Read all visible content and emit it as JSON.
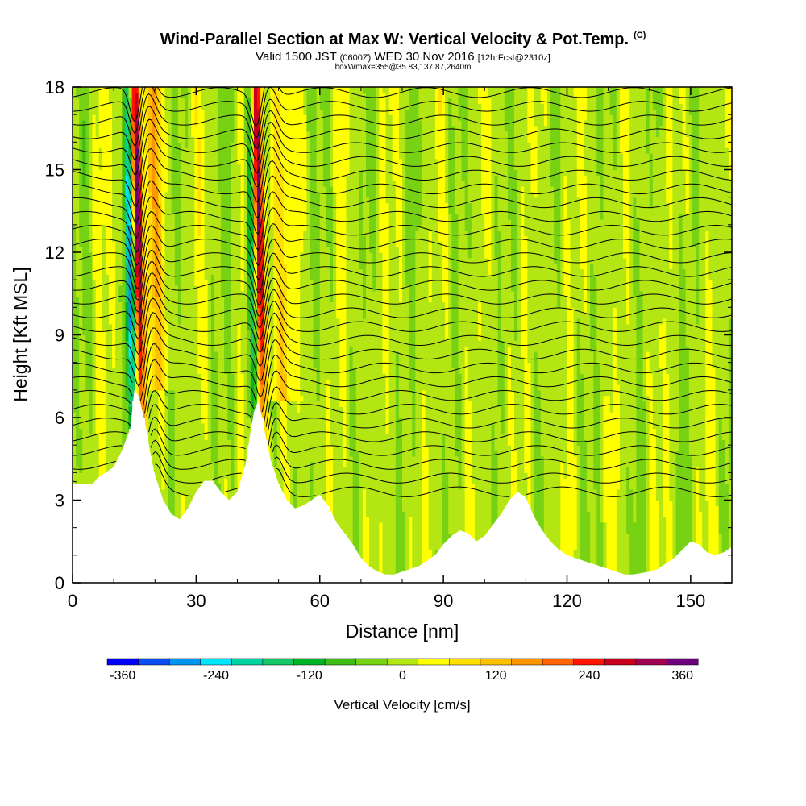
{
  "chart_data": {
    "type": "heatmap",
    "title": "Wind-Parallel Section at Max W: Vertical Velocity & Pot.Temp.",
    "title_mark": "(C)",
    "subtitle_prefix": "Valid 1500 JST",
    "subtitle_utc": "(0600Z)",
    "subtitle_date": "WED 30 Nov 2016",
    "subtitle_fcst": "[12hrFcst@2310z]",
    "subtitle2": "boxWmax=355@35.83,137.87,2640m",
    "xlabel": "Distance [nm]",
    "ylabel": "Height [Kft MSL]",
    "xlim": [
      0,
      160
    ],
    "ylim": [
      0,
      18
    ],
    "xticks": [
      0,
      30,
      60,
      90,
      120,
      150
    ],
    "yticks": [
      0,
      3,
      6,
      9,
      12,
      15,
      18
    ],
    "colorbar": {
      "label": "Vertical Velocity [cm/s]",
      "ticks": [
        -360,
        -240,
        -120,
        0,
        120,
        240,
        360
      ],
      "colors": [
        "#0000ff",
        "#0a4df0",
        "#0096f0",
        "#00e6ff",
        "#00d4a0",
        "#14c864",
        "#00b428",
        "#3cbe14",
        "#78d214",
        "#b4e614",
        "#ffff00",
        "#ffe000",
        "#ffc000",
        "#ff9600",
        "#ff6400",
        "#ff1400",
        "#c8001e",
        "#a00050",
        "#6e0080"
      ]
    },
    "terrain_profile": {
      "x": [
        0,
        5,
        6,
        10,
        12,
        14,
        15,
        16,
        17,
        18,
        19,
        20,
        22,
        24,
        26,
        28,
        30,
        32,
        34,
        36,
        38,
        40,
        42,
        43,
        44,
        45,
        46,
        47,
        48,
        50,
        52,
        54,
        56,
        58,
        60,
        62,
        64,
        66,
        68,
        70,
        72,
        74,
        76,
        78,
        80,
        82,
        84,
        86,
        88,
        90,
        92,
        94,
        96,
        98,
        100,
        102,
        104,
        106,
        108,
        110,
        112,
        114,
        116,
        118,
        120,
        122,
        124,
        126,
        128,
        130,
        132,
        134,
        136,
        138,
        140,
        142,
        144,
        146,
        148,
        150,
        152,
        154,
        156,
        158,
        160
      ],
      "y": [
        3.6,
        3.6,
        3.8,
        4.2,
        4.8,
        5.6,
        7.0,
        6.8,
        6.2,
        5.5,
        4.6,
        3.9,
        3.0,
        2.5,
        2.3,
        2.7,
        3.3,
        3.7,
        3.7,
        3.3,
        3.0,
        3.3,
        4.3,
        5.3,
        6.2,
        6.6,
        6.0,
        5.2,
        4.5,
        3.6,
        3.0,
        2.7,
        2.8,
        3.0,
        3.2,
        2.8,
        2.2,
        1.8,
        1.4,
        0.9,
        0.6,
        0.4,
        0.3,
        0.3,
        0.4,
        0.5,
        0.6,
        0.8,
        1.0,
        1.4,
        1.7,
        1.9,
        1.8,
        1.5,
        1.7,
        2.1,
        2.5,
        3.0,
        3.3,
        3.1,
        2.4,
        1.9,
        1.5,
        1.2,
        1.0,
        0.9,
        0.8,
        0.7,
        0.6,
        0.5,
        0.4,
        0.3,
        0.3,
        0.35,
        0.4,
        0.5,
        0.7,
        0.9,
        1.2,
        1.5,
        1.4,
        1.1,
        1.0,
        1.1,
        1.3
      ]
    },
    "updraft_cores": [
      {
        "name": "updraft-1",
        "x_base": 16.5,
        "y_base": 7.0,
        "tilt_nm_per_kft": -0.12,
        "max_w": 355
      },
      {
        "name": "updraft-2",
        "x_base": 46.0,
        "y_base": 6.7,
        "tilt_nm_per_kft": -0.12,
        "max_w": 320
      }
    ],
    "downdraft_cores": [
      {
        "name": "downdraft-1",
        "x_base": 14.5,
        "y_base": 7.0,
        "min_w": -260
      },
      {
        "name": "downdraft-2",
        "x_base": 44.0,
        "y_base": 6.5,
        "min_w": -200
      }
    ],
    "theta_contours": {
      "levels_kft": [
        3.3,
        3.8,
        4.3,
        4.8,
        5.3,
        5.8,
        6.3,
        6.8,
        7.3,
        7.8,
        8.3,
        8.8,
        9.3,
        9.8,
        10.3,
        10.8,
        11.3,
        11.8,
        12.3,
        12.8,
        13.3,
        13.8,
        14.3,
        14.8,
        15.3,
        15.8,
        16.3,
        16.8,
        17.3,
        17.8
      ]
    }
  }
}
